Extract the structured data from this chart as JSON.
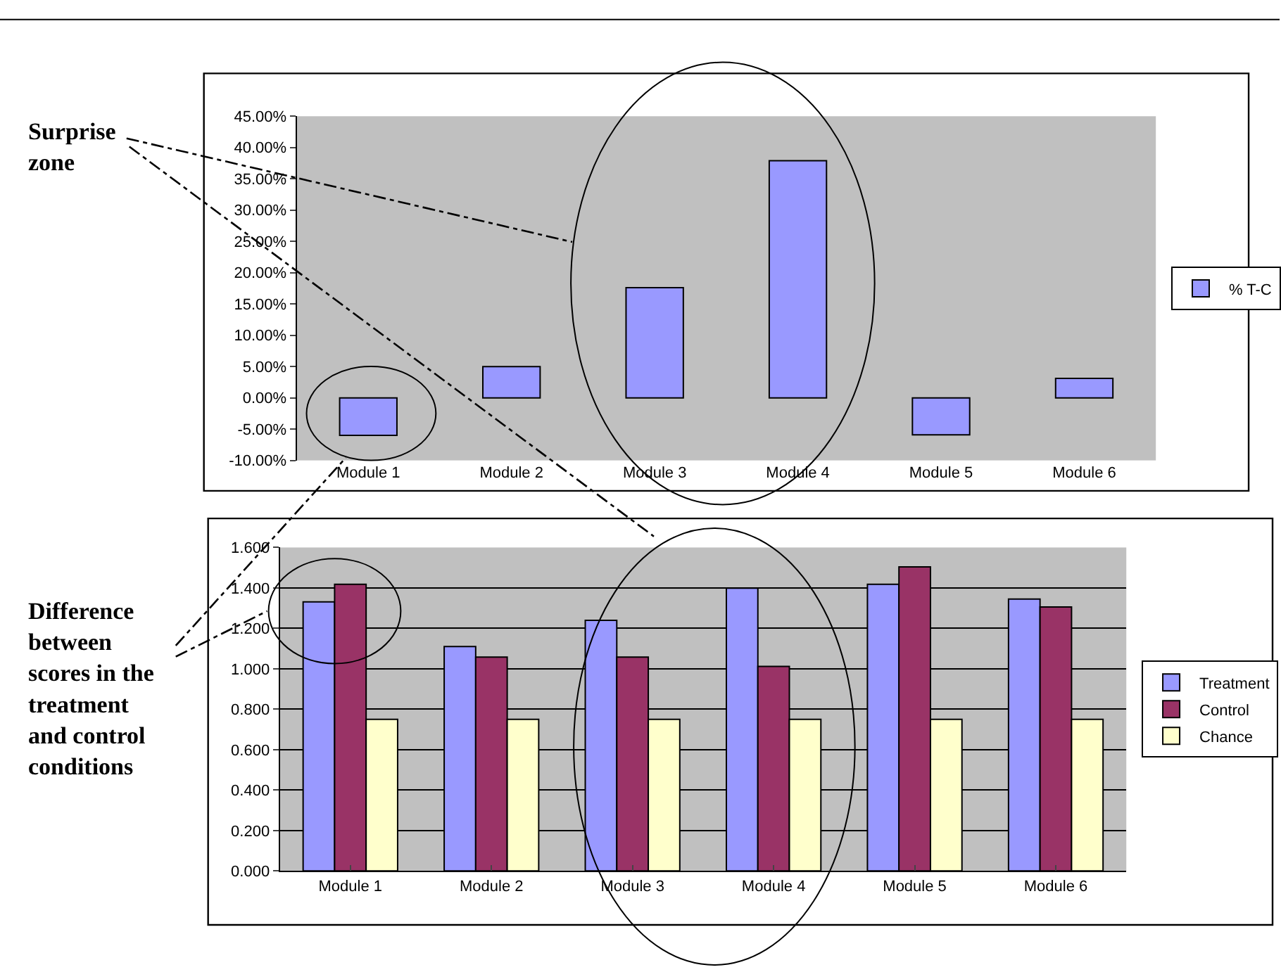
{
  "chart_data": [
    {
      "type": "bar",
      "categories": [
        "Module 1",
        "Module 2",
        "Module 3",
        "Module 4",
        "Module 5",
        "Module 6"
      ],
      "series": [
        {
          "name": "% T-C",
          "color": "#9999ff",
          "values": [
            -6.0,
            5.0,
            17.6,
            37.9,
            -5.9,
            3.1
          ]
        }
      ],
      "ylim": [
        -10,
        45
      ],
      "yticks": [
        {
          "value": -10,
          "label": "-10.00%"
        },
        {
          "value": -5,
          "label": "-5.00%"
        },
        {
          "value": 0,
          "label": "0.00%"
        },
        {
          "value": 5,
          "label": "5.00%"
        },
        {
          "value": 10,
          "label": "10.00%"
        },
        {
          "value": 15,
          "label": "15.00%"
        },
        {
          "value": 20,
          "label": "20.00%"
        },
        {
          "value": 25,
          "label": "25.00%"
        },
        {
          "value": 30,
          "label": "30.00%"
        },
        {
          "value": 35,
          "label": "35.00%"
        },
        {
          "value": 40,
          "label": "40.00%"
        },
        {
          "value": 45,
          "label": "45.00%"
        }
      ],
      "grid": false,
      "legend": "right",
      "annotations": [
        "Surprise\nzone"
      ]
    },
    {
      "type": "bar",
      "categories": [
        "Module 1",
        "Module 2",
        "Module 3",
        "Module 4",
        "Module 5",
        "Module 6"
      ],
      "series": [
        {
          "name": "Treatment",
          "color": "#9999ff",
          "values": [
            1.331,
            1.11,
            1.24,
            1.399,
            1.418,
            1.345
          ]
        },
        {
          "name": "Control",
          "color": "#993366",
          "values": [
            1.418,
            1.058,
            1.058,
            1.012,
            1.504,
            1.306
          ]
        },
        {
          "name": "Chance",
          "color": "#ffffcc",
          "values": [
            0.75,
            0.75,
            0.75,
            0.75,
            0.75,
            0.75
          ]
        }
      ],
      "ylim": [
        0,
        1.6
      ],
      "yticks": [
        {
          "value": 0,
          "label": "0.000"
        },
        {
          "value": 0.2,
          "label": "0.200"
        },
        {
          "value": 0.4,
          "label": "0.400"
        },
        {
          "value": 0.6,
          "label": "0.600"
        },
        {
          "value": 0.8,
          "label": "0.800"
        },
        {
          "value": 1.0,
          "label": "1.000"
        },
        {
          "value": 1.2,
          "label": "1.200"
        },
        {
          "value": 1.4,
          "label": "1.400"
        },
        {
          "value": 1.6,
          "label": "1.600"
        }
      ],
      "grid": "y",
      "legend": "right",
      "annotations": [
        "Difference\nbetween\nscores in the\ntreatment\nand control\nconditions"
      ]
    }
  ]
}
